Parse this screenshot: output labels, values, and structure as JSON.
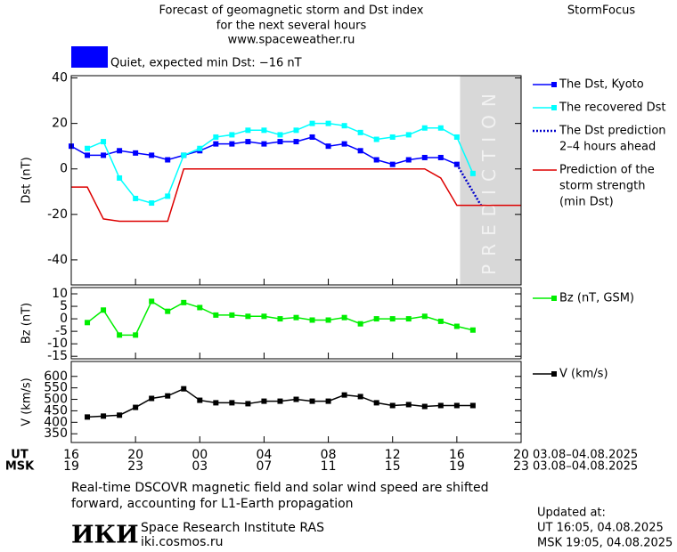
{
  "header": {
    "title": [
      "Forecast of geomagnetic storm and Dst index",
      "for the next several hours",
      "www.spaceweather.ru"
    ],
    "brand": "StormFocus",
    "status": "Quiet, expected min Dst: −16 nT",
    "status_color": "#0000ff"
  },
  "chart_data": [
    {
      "type": "line",
      "y_label": "Dst (nT)",
      "xlim": [
        0,
        28
      ],
      "ylim": [
        -51,
        41
      ],
      "yticks": [
        -40,
        -20,
        0,
        20,
        40
      ],
      "prediction_xlim": [
        24.2,
        28
      ],
      "prediction_text": "PREDICTION",
      "series": [
        {
          "name": [
            "The Dst, Kyoto"
          ],
          "color": "#0000ff",
          "marker": "square",
          "x": [
            0,
            1,
            2,
            3,
            4,
            5,
            6,
            7,
            8,
            9,
            10,
            11,
            12,
            13,
            14,
            15,
            16,
            17,
            18,
            19,
            20,
            21,
            22,
            23,
            24
          ],
          "values": [
            10,
            6,
            6,
            8,
            7,
            6,
            4,
            6,
            8,
            11,
            11,
            12,
            11,
            12,
            12,
            14,
            10,
            11,
            8,
            4,
            2,
            4,
            5,
            5,
            2
          ]
        },
        {
          "name": [
            "The recovered Dst"
          ],
          "color": "#00ffff",
          "marker": "square",
          "x": [
            1,
            2,
            3,
            4,
            5,
            6,
            7,
            8,
            9,
            10,
            11,
            12,
            13,
            14,
            15,
            16,
            17,
            18,
            19,
            20,
            21,
            22,
            23,
            24,
            25
          ],
          "values": [
            9,
            12,
            -4,
            -13,
            -15,
            -12,
            6,
            9,
            14,
            15,
            17,
            17,
            15,
            17,
            20,
            20,
            19,
            16,
            13,
            14,
            15,
            18,
            18,
            14,
            -2
          ]
        },
        {
          "name": [
            "The Dst prediction",
            "2–4 hours ahead"
          ],
          "color": "#0000cc",
          "dash": true,
          "x": [
            24,
            25.5
          ],
          "values": [
            2,
            -16
          ]
        },
        {
          "name": [
            "Prediction of the",
            "storm strength",
            "(min Dst)"
          ],
          "color": "#dd0000",
          "x": [
            0,
            1,
            2,
            3,
            6,
            7,
            22,
            23,
            24,
            28
          ],
          "values": [
            -8,
            -8,
            -22,
            -23,
            -23,
            0,
            0,
            -4,
            -16,
            -16
          ]
        }
      ]
    },
    {
      "type": "line",
      "y_label": "Bz (nT)",
      "xlim": [
        0,
        28
      ],
      "ylim": [
        -16,
        12.5
      ],
      "yticks": [
        -15,
        -10,
        -5,
        0,
        5,
        10
      ],
      "series": [
        {
          "name": [
            "Bz (nT, GSM)"
          ],
          "color": "#00ee00",
          "marker": "square",
          "x": [
            1,
            2,
            3,
            4,
            5,
            6,
            7,
            8,
            9,
            10,
            11,
            12,
            13,
            14,
            15,
            16,
            17,
            18,
            19,
            20,
            21,
            22,
            23,
            24,
            25
          ],
          "values": [
            -1.5,
            3.5,
            -6.5,
            -6.5,
            7,
            3,
            6.5,
            4.5,
            1.5,
            1.5,
            1,
            1,
            0,
            0.5,
            -0.5,
            -0.5,
            0.5,
            -2,
            0,
            0,
            0,
            1,
            -1,
            -3,
            -4.5
          ]
        }
      ]
    },
    {
      "type": "line",
      "y_label": "V (km/s)",
      "xlim": [
        0,
        28
      ],
      "ylim": [
        312,
        665
      ],
      "yticks": [
        350,
        400,
        450,
        500,
        550,
        600
      ],
      "xticks": [
        {
          "value": 0,
          "label": "16"
        },
        {
          "value": 4,
          "label": "20"
        },
        {
          "value": 8,
          "label": "00"
        },
        {
          "value": 12,
          "label": "04"
        },
        {
          "value": 16,
          "label": "08"
        },
        {
          "value": 20,
          "label": "12"
        },
        {
          "value": 24,
          "label": "16"
        },
        {
          "value": 28,
          "label": "20"
        }
      ],
      "msk_xticks": [
        {
          "value": 0,
          "label": "19"
        },
        {
          "value": 4,
          "label": "23"
        },
        {
          "value": 8,
          "label": "03"
        },
        {
          "value": 12,
          "label": "07"
        },
        {
          "value": 16,
          "label": "11"
        },
        {
          "value": 20,
          "label": "15"
        },
        {
          "value": 24,
          "label": "19"
        },
        {
          "value": 28,
          "label": "23"
        }
      ],
      "ut_label": "UT",
      "msk_label": "MSK",
      "ut_range": "03.08–04.08.2025",
      "msk_range": "03.08–04.08.2025",
      "series": [
        {
          "name": [
            "V (km/s)"
          ],
          "color": "#000000",
          "marker": "square",
          "x": [
            1,
            2,
            3,
            4,
            5,
            6,
            7,
            8,
            9,
            10,
            11,
            12,
            13,
            14,
            15,
            16,
            17,
            18,
            19,
            20,
            21,
            22,
            23,
            24,
            25
          ],
          "values": [
            423,
            427,
            431,
            465,
            504,
            515,
            546,
            496,
            485,
            485,
            481,
            492,
            492,
            500,
            492,
            492,
            519,
            512,
            485,
            473,
            477,
            469,
            473,
            473,
            473
          ]
        }
      ]
    }
  ],
  "footer": {
    "note": [
      "Real-time DSCOVR magnetic field and solar wind speed are shifted",
      "forward, accounting for L1-Earth propagation"
    ],
    "logo": "ИКИ",
    "institute": "Space Research Institute RAS",
    "site": "iki.cosmos.ru",
    "updated": [
      "Updated at:",
      "UT   16:05, 04.08.2025",
      "MSK 19:05, 04.08.2025"
    ]
  }
}
